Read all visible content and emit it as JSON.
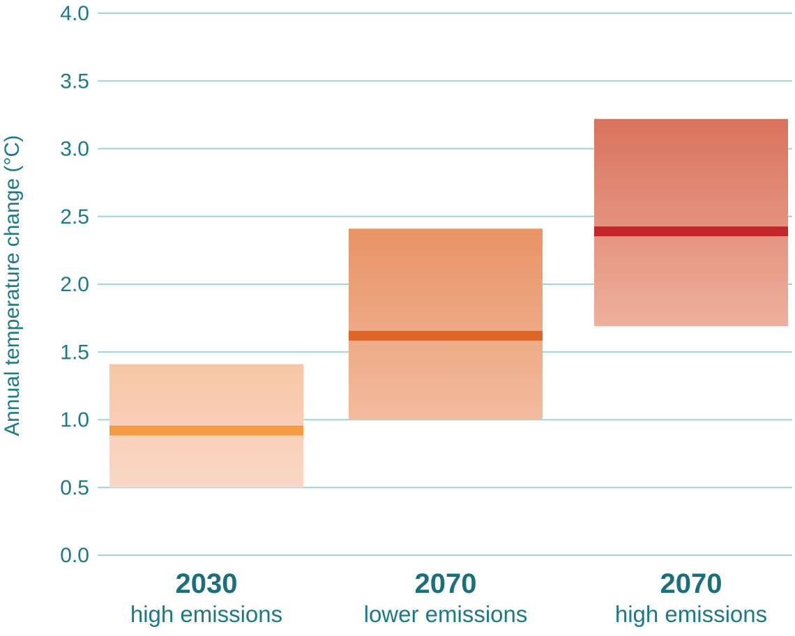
{
  "chart_data": {
    "type": "bar",
    "ylabel": "Annual temperature change (°C)",
    "ylim": [
      0,
      4
    ],
    "yticks": [
      "0.0",
      "0.5",
      "1.0",
      "1.5",
      "2.0",
      "2.5",
      "3.0",
      "3.5",
      "4.0"
    ],
    "grid": true,
    "categories": [
      {
        "year": "2030",
        "scenario": "high emissions",
        "low": 0.5,
        "high": 1.41,
        "median": 0.92,
        "band_top_color": "#f8c6a6",
        "band_bottom_color": "#fad7c7",
        "median_color": "#f59a45"
      },
      {
        "year": "2070",
        "scenario": "lower emissions",
        "low": 1.0,
        "high": 2.41,
        "median": 1.62,
        "band_top_color": "#e89466",
        "band_bottom_color": "#f3bb9e",
        "median_color": "#de6527"
      },
      {
        "year": "2070",
        "scenario": "high emissions",
        "low": 1.69,
        "high": 3.22,
        "median": 2.39,
        "band_top_color": "#d9735d",
        "band_bottom_color": "#eeb09d",
        "median_color": "#c4252b"
      }
    ]
  }
}
